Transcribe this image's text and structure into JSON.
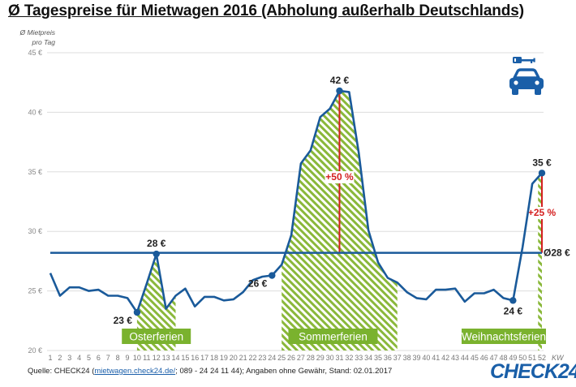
{
  "header": {
    "title": "Ø Tagespreise für Mietwagen 2016 (Abholung außerhalb Deutschlands)",
    "ylabel_line1": "Ø Mietpreis",
    "ylabel_line2": "pro Tag"
  },
  "footer": {
    "source_prefix": "Quelle: CHECK24 (",
    "source_link": "mietwagen.check24.de/",
    "source_suffix": "; 089 - 24 24 11 44); Angaben ohne Gewähr, Stand: 02.01.2017",
    "logo": "CHECK24"
  },
  "icons": [
    "key-icon",
    "car-icon"
  ],
  "colors": {
    "line": "#1a5a9a",
    "average": "#1a5a9a",
    "hatch": "#8ab83a",
    "holiday_box": "#7ab22e",
    "highlight": "#d42020",
    "grid": "#dddddd"
  },
  "chart_data": {
    "type": "line",
    "title": "Ø Tagespreise für Mietwagen 2016 (Abholung außerhalb Deutschlands)",
    "xlabel": "KW",
    "ylabel": "Ø Mietpreis pro Tag",
    "ylim": [
      20,
      45
    ],
    "yticks": [
      20,
      25,
      30,
      35,
      40,
      45
    ],
    "ytick_labels": [
      "20 €",
      "25 €",
      "30 €",
      "35 €",
      "40 €",
      "45 €"
    ],
    "grid": true,
    "x": [
      1,
      2,
      3,
      4,
      5,
      6,
      7,
      8,
      9,
      10,
      11,
      12,
      13,
      14,
      15,
      16,
      17,
      18,
      19,
      20,
      21,
      22,
      23,
      24,
      25,
      26,
      27,
      28,
      29,
      30,
      31,
      32,
      33,
      34,
      35,
      36,
      37,
      38,
      39,
      40,
      41,
      42,
      43,
      44,
      45,
      46,
      47,
      48,
      49,
      50,
      51,
      52
    ],
    "series": [
      {
        "name": "Ø Tagespreis",
        "values": [
          26.5,
          24.6,
          25.3,
          25.3,
          25.0,
          25.1,
          24.6,
          24.6,
          24.4,
          23.2,
          25.6,
          28.1,
          23.5,
          24.6,
          25.2,
          23.7,
          24.5,
          24.5,
          24.2,
          24.3,
          24.9,
          25.9,
          26.2,
          26.3,
          27.2,
          29.7,
          35.7,
          36.8,
          39.6,
          40.3,
          41.8,
          41.7,
          36.6,
          30.1,
          27.4,
          26.1,
          25.7,
          24.9,
          24.4,
          24.3,
          25.1,
          25.1,
          25.2,
          24.1,
          24.8,
          24.8,
          25.1,
          24.4,
          24.2,
          28.7,
          34.0,
          34.9
        ]
      }
    ],
    "average": {
      "value": 28.2,
      "label": "Ø28 €"
    },
    "annotations": [
      {
        "week": 10,
        "value": 23.2,
        "label": "23 €",
        "position": "below-left"
      },
      {
        "week": 12,
        "value": 28.1,
        "label": "28 €",
        "position": "above"
      },
      {
        "week": 24,
        "value": 26.3,
        "label": "26 €",
        "position": "below-left"
      },
      {
        "week": 31,
        "value": 41.8,
        "label": "42 €",
        "position": "above"
      },
      {
        "week": 49,
        "value": 24.2,
        "label": "24 €",
        "position": "below"
      },
      {
        "week": 52,
        "value": 34.9,
        "label": "35 €",
        "position": "above"
      }
    ],
    "increase_markers": [
      {
        "week": 31,
        "label": "+50 %"
      },
      {
        "week": 52,
        "label": "+25 %"
      }
    ],
    "holidays": [
      {
        "name": "Osterferien",
        "from_week": 10,
        "to_week": 14
      },
      {
        "name": "Sommerferien",
        "from_week": 25,
        "to_week": 37
      },
      {
        "name": "Weihnachtsferien",
        "from_week": 51.6,
        "to_week": 52
      }
    ]
  }
}
